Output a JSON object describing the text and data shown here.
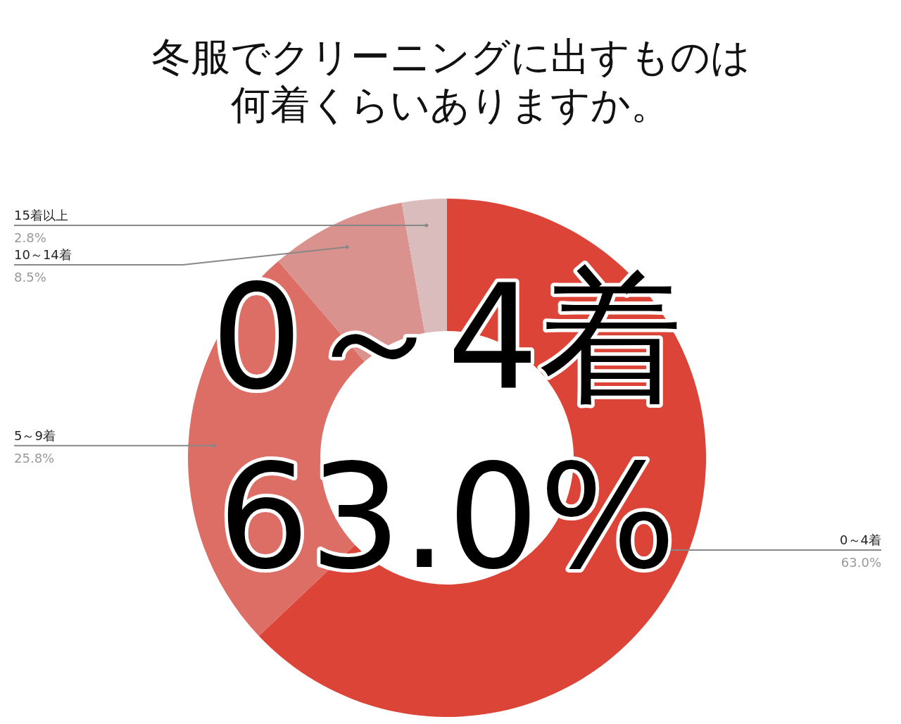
{
  "chart_data": {
    "type": "donut",
    "title": "冬服でクリーニングに出すものは",
    "subtitle": "何着くらいありますか。",
    "categories": [
      "0～4着",
      "5～9着",
      "10～14着",
      "15着以上"
    ],
    "values": [
      63.0,
      25.8,
      8.5,
      2.8
    ],
    "colors": [
      "#db4437",
      "#dc6e66",
      "#d9928d",
      "#dbbcbc"
    ],
    "value_labels": [
      "63.0%",
      "25.8%",
      "8.5%",
      "2.8%"
    ],
    "annotations": [
      "0～4着",
      "63.0%"
    ]
  }
}
